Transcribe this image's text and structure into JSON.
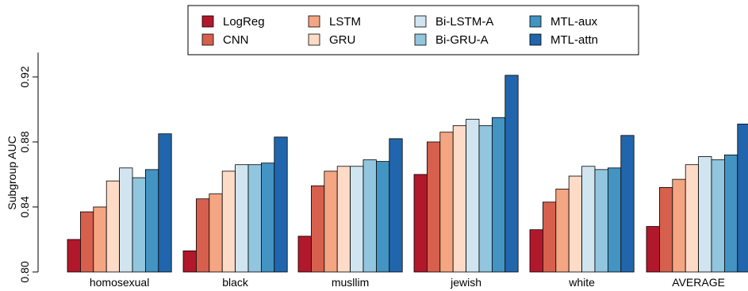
{
  "chart_data": {
    "type": "bar",
    "title": "",
    "xlabel": "",
    "ylabel": "Subgroup AUC",
    "ylim": [
      0.8,
      0.94
    ],
    "yticks": [
      "0.80",
      "0.84",
      "0.88",
      "0.92"
    ],
    "legend_position": "top-center",
    "grid": false,
    "categories": [
      "homosexual",
      "black",
      "musllim",
      "jewish",
      "white",
      "AVERAGE"
    ],
    "series": [
      {
        "name": "LogReg",
        "color": "#b2182b",
        "values": [
          0.82,
          0.813,
          0.822,
          0.86,
          0.826,
          0.828
        ]
      },
      {
        "name": "CNN",
        "color": "#d6604d",
        "values": [
          0.837,
          0.845,
          0.853,
          0.88,
          0.843,
          0.852
        ]
      },
      {
        "name": "LSTM",
        "color": "#f4a582",
        "values": [
          0.84,
          0.848,
          0.862,
          0.886,
          0.851,
          0.857
        ]
      },
      {
        "name": "GRU",
        "color": "#fddbc7",
        "values": [
          0.856,
          0.862,
          0.865,
          0.89,
          0.859,
          0.866
        ]
      },
      {
        "name": "Bi-LSTM-A",
        "color": "#d1e5f0",
        "values": [
          0.864,
          0.866,
          0.865,
          0.894,
          0.865,
          0.871
        ]
      },
      {
        "name": "Bi-GRU-A",
        "color": "#92c5de",
        "values": [
          0.858,
          0.866,
          0.869,
          0.89,
          0.863,
          0.869
        ]
      },
      {
        "name": "MTL-aux",
        "color": "#4393c3",
        "values": [
          0.863,
          0.867,
          0.868,
          0.895,
          0.864,
          0.872
        ]
      },
      {
        "name": "MTL-attn",
        "color": "#2166ac",
        "values": [
          0.885,
          0.883,
          0.882,
          0.921,
          0.884,
          0.891
        ]
      }
    ]
  }
}
